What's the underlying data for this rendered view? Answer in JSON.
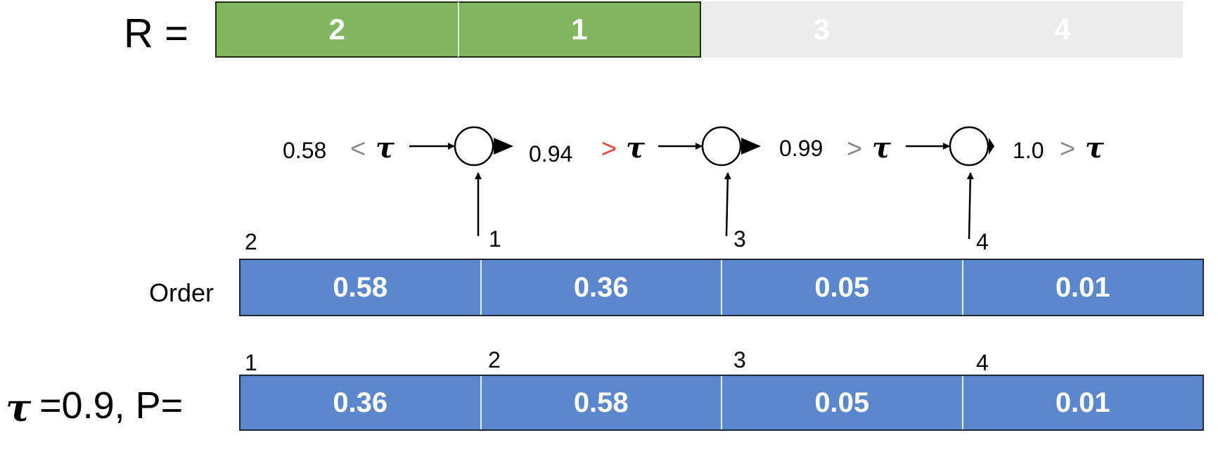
{
  "r_label": "R =",
  "r_cells": [
    {
      "text": "2",
      "filled": true
    },
    {
      "text": "1",
      "filled": true
    },
    {
      "text": "3",
      "filled": false
    },
    {
      "text": "4",
      "filled": false
    }
  ],
  "flow": {
    "values": [
      "0.58",
      "0.94",
      "0.99",
      "1.0"
    ],
    "relations": [
      "<",
      ">",
      ">",
      ">"
    ],
    "tau_symbol": "τ",
    "inputs": [
      "1",
      "3",
      "4"
    ]
  },
  "order_label": "Order",
  "order_indices": [
    "2",
    "1",
    "3",
    "4"
  ],
  "order_values": [
    "0.58",
    "0.36",
    "0.05",
    "0.01"
  ],
  "p_label": "=0.9, P=",
  "p_indices": [
    "1",
    "2",
    "3",
    "4"
  ],
  "p_values": [
    "0.36",
    "0.58",
    "0.05",
    "0.01"
  ],
  "colors": {
    "green": "#82b65e",
    "blue": "#5b87cc",
    "empty": "#ececec",
    "highlight": "#e8453c",
    "relation_gray": "#8a8a8a"
  }
}
